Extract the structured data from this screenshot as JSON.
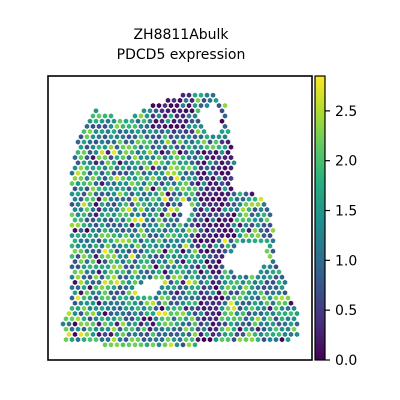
{
  "chart_data": {
    "type": "scatter",
    "title_line1": "ZH8811Abulk",
    "title_line2": "PDCD5 expression",
    "xlabel": "",
    "ylabel": "",
    "grid": false,
    "legend": "none",
    "colormap": "viridis",
    "colorbar": {
      "range": [
        0.0,
        2.85
      ],
      "ticks": [
        0.0,
        0.5,
        1.0,
        1.5,
        2.0,
        2.5
      ],
      "tick_labels": [
        "0.0",
        "0.5",
        "1.0",
        "1.5",
        "2.0",
        "2.5"
      ],
      "position": "right"
    },
    "spots": {
      "marker": "hexagon",
      "value_range": [
        0.0,
        2.85
      ],
      "note_values": "per-spot expression values rendered procedurally"
    }
  }
}
